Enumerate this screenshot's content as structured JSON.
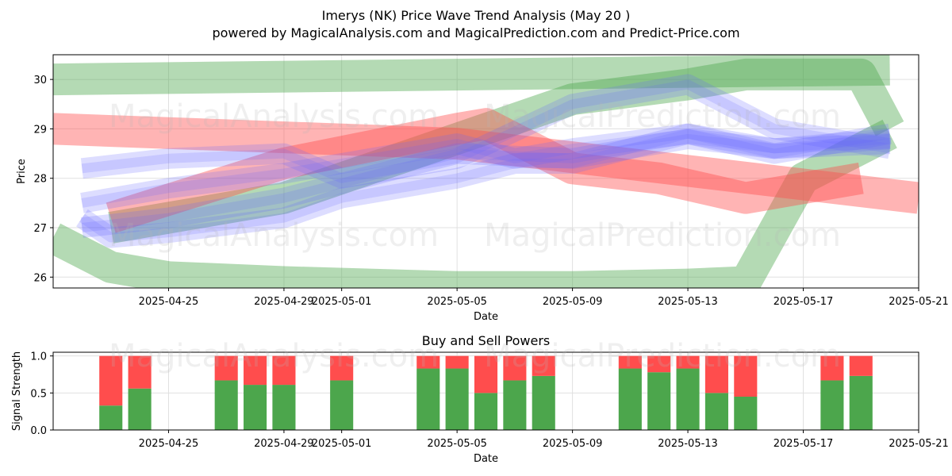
{
  "title": "Imerys (NK) Price Wave Trend Analysis (May 20 )",
  "subtitle": "powered by MagicalAnalysis.com and MagicalPrediction.com and Predict-Price.com",
  "watermarks": [
    "MagicalAnalysis.com",
    "MagicalPrediction.com"
  ],
  "colors": {
    "buy": "#4ca64c",
    "sell": "#ff4d4d",
    "wave_green": "#4ca64c",
    "wave_red": "#ff4d4d",
    "wave_blue": "#6666ff"
  },
  "chart_data": [
    {
      "type": "line",
      "title": "",
      "xlabel": "Date",
      "ylabel": "Price",
      "xlim": [
        "2025-04-21",
        "2025-05-21"
      ],
      "ylim": [
        25.78,
        30.5
      ],
      "x_ticks": [
        "2025-04-25",
        "2025-04-29",
        "2025-05-01",
        "2025-05-05",
        "2025-05-09",
        "2025-05-13",
        "2025-05-17",
        "2025-05-21"
      ],
      "y_ticks": [
        26,
        27,
        28,
        29,
        30
      ],
      "grid": true,
      "series": [
        {
          "color": "green",
          "x": [
            "2025-04-21",
            "2025-05-20"
          ],
          "y": [
            30.0,
            30.2
          ]
        },
        {
          "color": "green",
          "x": [
            "2025-04-21",
            "2025-04-23",
            "2025-04-25",
            "2025-04-29",
            "2025-05-05",
            "2025-05-09",
            "2025-05-13",
            "2025-05-15",
            "2025-05-17",
            "2025-05-20"
          ],
          "y": [
            26.8,
            26.2,
            26.0,
            25.9,
            25.8,
            25.8,
            25.85,
            25.9,
            28.0,
            28.9
          ]
        },
        {
          "color": "green",
          "x": [
            "2025-04-23",
            "2025-04-29",
            "2025-05-05",
            "2025-05-09",
            "2025-05-13",
            "2025-05-15",
            "2025-05-19",
            "2025-05-20"
          ],
          "y": [
            27.0,
            27.6,
            28.8,
            29.6,
            29.9,
            30.1,
            30.1,
            29.0
          ]
        },
        {
          "color": "red",
          "x": [
            "2025-04-21",
            "2025-05-05",
            "2025-05-21"
          ],
          "y": [
            29.0,
            28.7,
            27.6
          ]
        },
        {
          "color": "red",
          "x": [
            "2025-04-23",
            "2025-04-29",
            "2025-05-05",
            "2025-05-06",
            "2025-05-09",
            "2025-05-12",
            "2025-05-15",
            "2025-05-19"
          ],
          "y": [
            27.2,
            28.3,
            29.0,
            29.1,
            28.2,
            28.0,
            27.6,
            28.0
          ]
        },
        {
          "color": "blue",
          "x": [
            "2025-04-22",
            "2025-04-25",
            "2025-04-29",
            "2025-05-05",
            "2025-05-09",
            "2025-05-13",
            "2025-05-16",
            "2025-05-20"
          ],
          "y": [
            27.0,
            27.2,
            27.6,
            28.5,
            28.4,
            28.8,
            28.6,
            28.7
          ]
        },
        {
          "color": "blue",
          "x": [
            "2025-04-22",
            "2025-04-25",
            "2025-04-29",
            "2025-05-01",
            "2025-05-05",
            "2025-05-09",
            "2025-05-13",
            "2025-05-16",
            "2025-05-20"
          ],
          "y": [
            28.2,
            28.4,
            28.5,
            28.0,
            28.4,
            29.5,
            29.9,
            29.0,
            28.6
          ]
        },
        {
          "color": "blue",
          "x": [
            "2025-04-22",
            "2025-04-23",
            "2025-04-25",
            "2025-04-29",
            "2025-05-01",
            "2025-05-05",
            "2025-05-07",
            "2025-05-09",
            "2025-05-13",
            "2025-05-16",
            "2025-05-20"
          ],
          "y": [
            27.2,
            26.8,
            26.9,
            27.2,
            27.6,
            28.0,
            28.3,
            28.3,
            28.9,
            28.5,
            28.9
          ]
        },
        {
          "color": "blue",
          "x": [
            "2025-04-22",
            "2025-04-25",
            "2025-04-29",
            "2025-05-05",
            "2025-05-07",
            "2025-05-09",
            "2025-05-13",
            "2025-05-16",
            "2025-05-20"
          ],
          "y": [
            27.5,
            27.8,
            28.1,
            28.7,
            28.4,
            28.6,
            28.9,
            28.6,
            28.8
          ]
        }
      ]
    },
    {
      "type": "bar",
      "title": "Buy and Sell Powers",
      "xlabel": "Date",
      "ylabel": "Signal Strength",
      "xlim": [
        "2025-04-21",
        "2025-05-21"
      ],
      "ylim": [
        0,
        1.05
      ],
      "y_ticks": [
        0.0,
        0.5,
        1.0
      ],
      "x_ticks": [
        "2025-04-25",
        "2025-04-29",
        "2025-05-01",
        "2025-05-05",
        "2025-05-09",
        "2025-05-13",
        "2025-05-17",
        "2025-05-21"
      ],
      "grid": true,
      "categories": [
        "2025-04-23",
        "2025-04-24",
        "2025-04-27",
        "2025-04-28",
        "2025-04-29",
        "2025-05-01",
        "2025-05-04",
        "2025-05-05",
        "2025-05-06",
        "2025-05-07",
        "2025-05-08",
        "2025-05-11",
        "2025-05-12",
        "2025-05-13",
        "2025-05-14",
        "2025-05-15",
        "2025-05-18",
        "2025-05-19"
      ],
      "series": [
        {
          "name": "buy",
          "values": [
            0.33,
            0.56,
            0.67,
            0.61,
            0.61,
            0.67,
            0.83,
            0.83,
            0.5,
            0.67,
            0.73,
            0.83,
            0.78,
            0.83,
            0.5,
            0.45,
            0.67,
            0.73
          ]
        },
        {
          "name": "sell",
          "values": [
            0.67,
            0.44,
            0.33,
            0.39,
            0.39,
            0.33,
            0.17,
            0.17,
            0.5,
            0.33,
            0.27,
            0.17,
            0.22,
            0.17,
            0.5,
            0.55,
            0.33,
            0.27
          ]
        }
      ]
    }
  ]
}
